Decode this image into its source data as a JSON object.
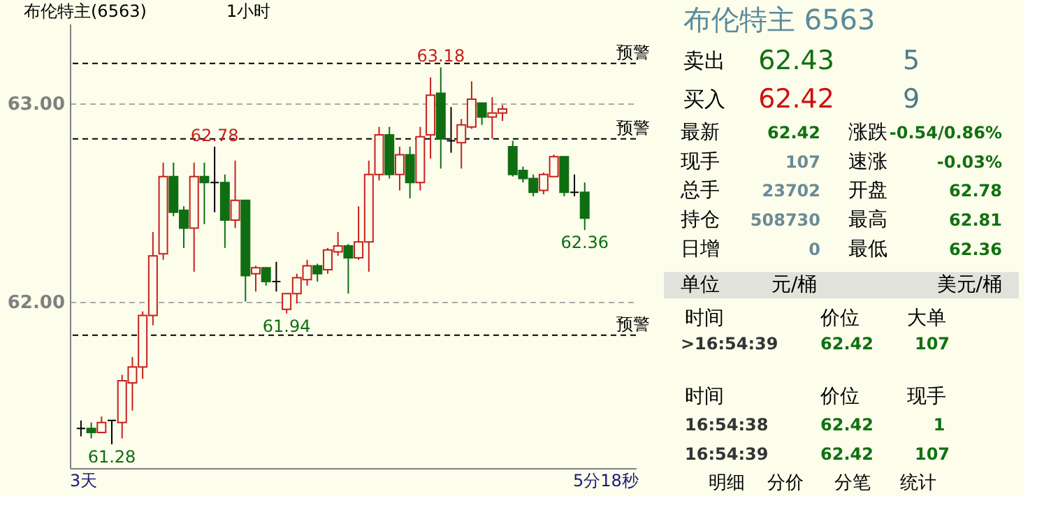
{
  "chart_data": [
    {
      "type": "candlestick",
      "title": "布伦特主(6563)",
      "categories": [
        null,
        null,
        null,
        null,
        null,
        null,
        null,
        null,
        null,
        null,
        null,
        null,
        null,
        null,
        null,
        null,
        null,
        null,
        null,
        null,
        null,
        null,
        null,
        null,
        null,
        null,
        null,
        null,
        null,
        null,
        null,
        null,
        null,
        null,
        null,
        null,
        null,
        null,
        null,
        null,
        null,
        null,
        null,
        null,
        null,
        null,
        null,
        null,
        null,
        null
      ],
      "ohlc": [
        [
          61.36,
          61.4,
          61.32,
          61.36
        ],
        [
          61.36,
          61.39,
          61.31,
          61.34
        ],
        [
          61.34,
          61.42,
          61.34,
          61.39
        ],
        [
          61.4,
          61.4,
          61.28,
          61.4
        ],
        [
          61.39,
          61.63,
          61.31,
          61.6
        ],
        [
          61.59,
          61.72,
          61.45,
          61.67
        ],
        [
          61.67,
          61.95,
          61.61,
          61.93
        ],
        [
          61.93,
          62.35,
          61.88,
          62.23
        ],
        [
          62.24,
          62.7,
          62.21,
          62.63
        ],
        [
          62.63,
          62.7,
          62.43,
          62.45
        ],
        [
          62.46,
          62.48,
          62.27,
          62.37
        ],
        [
          62.37,
          62.7,
          62.15,
          62.63
        ],
        [
          62.63,
          62.7,
          62.39,
          62.6
        ],
        [
          62.6,
          62.78,
          62.45,
          62.6
        ],
        [
          62.6,
          62.64,
          62.27,
          62.41
        ],
        [
          62.41,
          62.71,
          62.37,
          62.51
        ],
        [
          62.51,
          62.51,
          62.0,
          62.13
        ],
        [
          62.14,
          62.18,
          62.05,
          62.17
        ],
        [
          62.17,
          62.17,
          62.08,
          62.1
        ],
        [
          62.1,
          62.2,
          62.05,
          62.1
        ],
        [
          61.96,
          62.04,
          61.94,
          62.04
        ],
        [
          62.04,
          62.14,
          61.99,
          62.12
        ],
        [
          62.11,
          62.21,
          62.08,
          62.18
        ],
        [
          62.18,
          62.19,
          62.1,
          62.14
        ],
        [
          62.16,
          62.27,
          62.14,
          62.26
        ],
        [
          62.25,
          62.35,
          62.23,
          62.28
        ],
        [
          62.28,
          62.29,
          62.04,
          62.22
        ],
        [
          62.22,
          62.48,
          62.21,
          62.3
        ],
        [
          62.3,
          62.71,
          62.15,
          62.64
        ],
        [
          62.64,
          62.88,
          62.61,
          62.84
        ],
        [
          62.84,
          62.88,
          62.62,
          62.64
        ],
        [
          62.64,
          62.78,
          62.56,
          62.74
        ],
        [
          62.74,
          62.78,
          62.52,
          62.6
        ],
        [
          62.6,
          62.88,
          62.56,
          62.83
        ],
        [
          62.84,
          63.13,
          62.72,
          63.04
        ],
        [
          63.05,
          63.18,
          62.67,
          62.82
        ],
        [
          62.81,
          62.98,
          62.75,
          62.81
        ],
        [
          62.8,
          62.92,
          62.67,
          62.89
        ],
        [
          62.88,
          63.11,
          62.87,
          63.02
        ],
        [
          63.0,
          63.0,
          62.89,
          62.93
        ],
        [
          62.93,
          63.03,
          62.82,
          62.95
        ],
        [
          62.95,
          62.99,
          62.91,
          62.97
        ],
        [
          62.78,
          62.81,
          62.63,
          62.64
        ],
        [
          62.66,
          62.68,
          62.6,
          62.62
        ],
        [
          62.62,
          62.64,
          62.53,
          62.55
        ],
        [
          62.56,
          62.65,
          62.54,
          62.64
        ],
        [
          62.63,
          62.74,
          62.63,
          62.73
        ],
        [
          62.73,
          62.73,
          62.53,
          62.55
        ],
        [
          62.55,
          62.64,
          62.53,
          62.55
        ],
        [
          62.55,
          62.6,
          62.36,
          62.42
        ]
      ],
      "ylim": [
        61.16,
        63.4
      ],
      "yticks": [
        {
          "value": 62,
          "label": "62.00"
        },
        {
          "value": 63,
          "label": "63.00"
        }
      ],
      "grid": "y",
      "tick_labels": "y",
      "ref_lines": [
        {
          "axis": "y",
          "value": 63.2,
          "label": "预警",
          "color": "#000000",
          "line_style": "dashed"
        },
        {
          "axis": "y",
          "value": 62.82,
          "label": "预警",
          "color": "#000000",
          "line_style": "dashed"
        },
        {
          "axis": "y",
          "value": 61.83,
          "label": "预警",
          "color": "#000000",
          "line_style": "dashed"
        }
      ],
      "annotations": [
        "1小时",
        "3天",
        "5分18秒",
        {
          "text": "62.78",
          "y": 62.78
        },
        {
          "text": "63.18",
          "y": 63.18
        },
        {
          "text": "61.94",
          "y": 61.94
        },
        {
          "text": "62.36",
          "y": 62.36
        },
        {
          "text": "61.28",
          "y": 61.28
        }
      ]
    },
    {
      "type": "other",
      "title": "布伦特主 6563",
      "annotations": [
        "卖出",
        "62.43",
        "5",
        "买入",
        "62.42",
        "9",
        "最新",
        "62.42",
        "涨跌",
        "-0.54/0.86%",
        "现手",
        "107",
        "速涨",
        "-0.03%",
        "总手",
        "23702",
        "开盘",
        "62.78",
        "持仓",
        "508730",
        "最高",
        "62.81",
        "日增",
        "0",
        "最低",
        "62.36",
        "单位",
        "元/桶",
        "美元/桶",
        "时间",
        "价位",
        "大单",
        ">16:54:39",
        "62.42",
        "107",
        "时间",
        "价位",
        "现手",
        "16:54:38",
        "62.42",
        "1",
        "16:54:39",
        "62.42",
        "107",
        "明细",
        "分价",
        "分笔",
        "统计"
      ]
    }
  ]
}
